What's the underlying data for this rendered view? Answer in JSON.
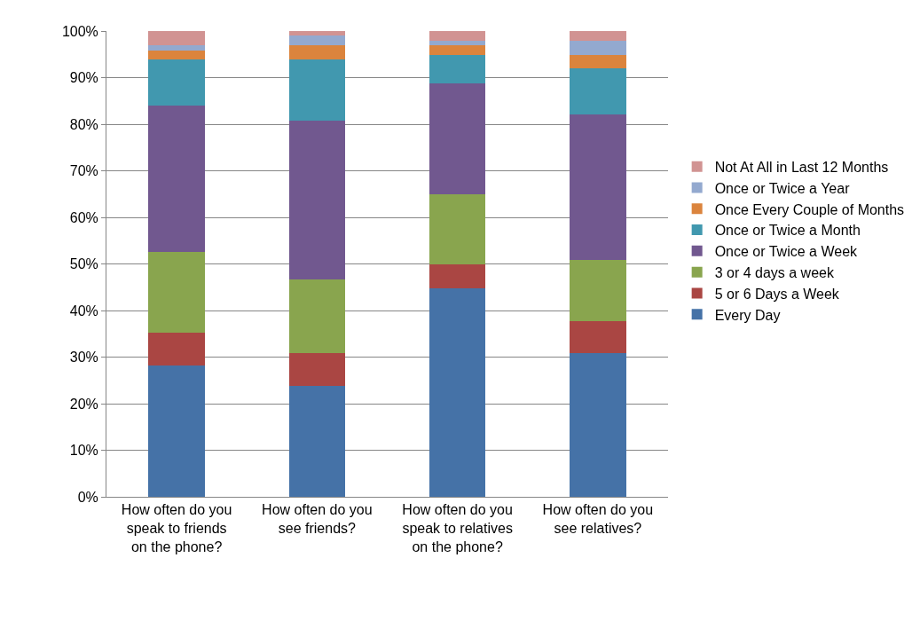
{
  "chart_data": {
    "type": "bar",
    "stacked": true,
    "categories": [
      "How often do you speak to friends on the phone?",
      "How often do you see friends?",
      "How often do you speak to relatives on the phone?",
      "How often do you see relatives?"
    ],
    "series": [
      {
        "name": "Every Day",
        "color": "#4572a7",
        "values": [
          28.2,
          23.8,
          44.7,
          30.8
        ]
      },
      {
        "name": "5 or 6 Days a Week",
        "color": "#aa4643",
        "values": [
          7.0,
          7.0,
          5.3,
          6.9
        ]
      },
      {
        "name": "3 or 4 days a week",
        "color": "#89a54e",
        "values": [
          17.3,
          15.9,
          14.9,
          13.2
        ]
      },
      {
        "name": "Once or Twice a Week",
        "color": "#71588f",
        "values": [
          31.5,
          34.1,
          23.8,
          31.2
        ]
      },
      {
        "name": "Once or Twice a Month",
        "color": "#4198af",
        "values": [
          10.0,
          13.2,
          6.1,
          9.9
        ]
      },
      {
        "name": "Once Every Couple of Months",
        "color": "#db843d",
        "values": [
          1.8,
          3.0,
          2.2,
          2.8
        ]
      },
      {
        "name": "Once or Twice a Year",
        "color": "#93a9cf",
        "values": [
          1.2,
          2.1,
          1.0,
          3.2
        ]
      },
      {
        "name": "Not At All in Last 12 Months",
        "color": "#d19392",
        "values": [
          3.0,
          0.9,
          2.0,
          2.0
        ]
      }
    ],
    "ylim": [
      0,
      100
    ],
    "yticks": [
      {
        "value": 0,
        "label": "0%"
      },
      {
        "value": 10,
        "label": "10%"
      },
      {
        "value": 20,
        "label": "20%"
      },
      {
        "value": 30,
        "label": "30%"
      },
      {
        "value": 40,
        "label": "40%"
      },
      {
        "value": 50,
        "label": "50%"
      },
      {
        "value": 60,
        "label": "60%"
      },
      {
        "value": 70,
        "label": "70%"
      },
      {
        "value": 80,
        "label": "80%"
      },
      {
        "value": 90,
        "label": "90%"
      },
      {
        "value": 100,
        "label": "100%"
      }
    ],
    "grid": "y",
    "legend": "right"
  }
}
